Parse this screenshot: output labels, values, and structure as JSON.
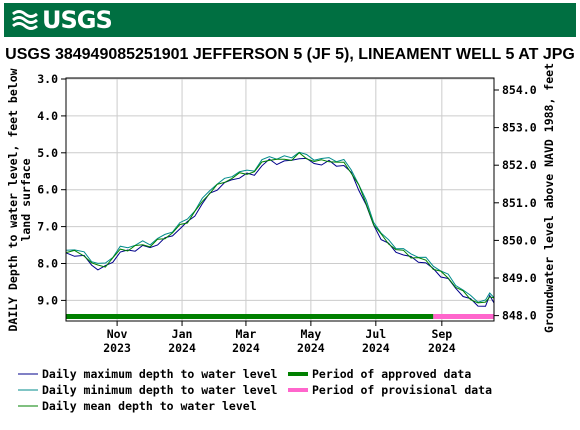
{
  "header": {
    "logo_text": "USGS",
    "brand_color": "#006f41",
    "icon": "usgs-wave-icon"
  },
  "chart_data": {
    "type": "line",
    "title": "USGS 384949085251901 JEFFERSON 5 (JF 5), LINEAMENT WELL 5 AT JPG",
    "ylabel": "DAILY Depth to water level, feet below",
    "ylabel2": "land surface",
    "y2label": "Groundwater level above NAVD 1988, feet",
    "y_inverted": true,
    "ylim": [
      3.0,
      9.45
    ],
    "yticks": [
      "3.0",
      "4.0",
      "5.0",
      "6.0",
      "7.0",
      "8.0",
      "9.0"
    ],
    "y2ticks": [
      "854.0",
      "853.0",
      "852.0",
      "851.0",
      "850.0",
      "849.0",
      "848.0"
    ],
    "xticks": [
      {
        "date": "2023-11-01",
        "month": "Nov",
        "year": "2023"
      },
      {
        "date": "2024-01-01",
        "month": "Jan",
        "year": "2024"
      },
      {
        "date": "2024-03-01",
        "month": "Mar",
        "year": "2024"
      },
      {
        "date": "2024-05-01",
        "month": "May",
        "year": "2024"
      },
      {
        "date": "2024-07-01",
        "month": "Jul",
        "year": "2024"
      },
      {
        "date": "2024-09-01",
        "month": "Sep",
        "year": "2024"
      }
    ],
    "xlim": [
      "2023-09-14",
      "2024-10-20"
    ],
    "grid": true,
    "series": [
      {
        "name": "Daily maximum depth to water level",
        "color": "#00008b"
      },
      {
        "name": "Daily minimum depth to water level",
        "color": "#008b8b"
      },
      {
        "name": "Daily mean depth to water level",
        "color": "#008000"
      }
    ],
    "points": [
      {
        "x": "2023-09-14",
        "y": 7.65
      },
      {
        "x": "2023-09-22",
        "y": 7.7
      },
      {
        "x": "2023-10-01",
        "y": 7.78
      },
      {
        "x": "2023-10-08",
        "y": 7.95
      },
      {
        "x": "2023-10-14",
        "y": 8.1
      },
      {
        "x": "2023-10-21",
        "y": 8.05
      },
      {
        "x": "2023-10-28",
        "y": 7.85
      },
      {
        "x": "2023-11-04",
        "y": 7.65
      },
      {
        "x": "2023-11-11",
        "y": 7.6
      },
      {
        "x": "2023-11-18",
        "y": 7.55
      },
      {
        "x": "2023-11-25",
        "y": 7.5
      },
      {
        "x": "2023-12-02",
        "y": 7.5
      },
      {
        "x": "2023-12-09",
        "y": 7.4
      },
      {
        "x": "2023-12-16",
        "y": 7.3
      },
      {
        "x": "2023-12-23",
        "y": 7.15
      },
      {
        "x": "2023-12-30",
        "y": 7.0
      },
      {
        "x": "2024-01-06",
        "y": 6.85
      },
      {
        "x": "2024-01-13",
        "y": 6.6
      },
      {
        "x": "2024-01-20",
        "y": 6.35
      },
      {
        "x": "2024-01-27",
        "y": 6.05
      },
      {
        "x": "2024-02-03",
        "y": 5.9
      },
      {
        "x": "2024-02-10",
        "y": 5.8
      },
      {
        "x": "2024-02-17",
        "y": 5.65
      },
      {
        "x": "2024-02-24",
        "y": 5.6
      },
      {
        "x": "2024-03-02",
        "y": 5.55
      },
      {
        "x": "2024-03-09",
        "y": 5.5
      },
      {
        "x": "2024-03-16",
        "y": 5.3
      },
      {
        "x": "2024-03-23",
        "y": 5.15
      },
      {
        "x": "2024-03-30",
        "y": 5.2
      },
      {
        "x": "2024-04-06",
        "y": 5.2
      },
      {
        "x": "2024-04-13",
        "y": 5.15
      },
      {
        "x": "2024-04-20",
        "y": 5.05
      },
      {
        "x": "2024-04-27",
        "y": 5.15
      },
      {
        "x": "2024-05-04",
        "y": 5.2
      },
      {
        "x": "2024-05-11",
        "y": 5.25
      },
      {
        "x": "2024-05-18",
        "y": 5.2
      },
      {
        "x": "2024-05-25",
        "y": 5.25
      },
      {
        "x": "2024-06-01",
        "y": 5.3
      },
      {
        "x": "2024-06-08",
        "y": 5.5
      },
      {
        "x": "2024-06-15",
        "y": 5.9
      },
      {
        "x": "2024-06-22",
        "y": 6.4
      },
      {
        "x": "2024-06-29",
        "y": 6.9
      },
      {
        "x": "2024-07-06",
        "y": 7.25
      },
      {
        "x": "2024-07-13",
        "y": 7.45
      },
      {
        "x": "2024-07-20",
        "y": 7.6
      },
      {
        "x": "2024-07-27",
        "y": 7.7
      },
      {
        "x": "2024-08-03",
        "y": 7.8
      },
      {
        "x": "2024-08-10",
        "y": 7.85
      },
      {
        "x": "2024-08-17",
        "y": 7.95
      },
      {
        "x": "2024-08-24",
        "y": 8.1
      },
      {
        "x": "2024-08-31",
        "y": 8.25
      },
      {
        "x": "2024-09-07",
        "y": 8.4
      },
      {
        "x": "2024-09-14",
        "y": 8.6
      },
      {
        "x": "2024-09-21",
        "y": 8.8
      },
      {
        "x": "2024-09-28",
        "y": 8.95
      },
      {
        "x": "2024-10-05",
        "y": 9.05
      },
      {
        "x": "2024-10-12",
        "y": 9.1
      },
      {
        "x": "2024-10-16",
        "y": 8.85
      },
      {
        "x": "2024-10-20",
        "y": 8.95
      }
    ],
    "periods": [
      {
        "name": "Period of approved data",
        "color": "#008000",
        "start": "2023-09-14",
        "end": "2024-08-24"
      },
      {
        "name": "Period of provisional data",
        "color": "#ff66cc",
        "start": "2024-08-24",
        "end": "2024-10-20"
      }
    ]
  }
}
